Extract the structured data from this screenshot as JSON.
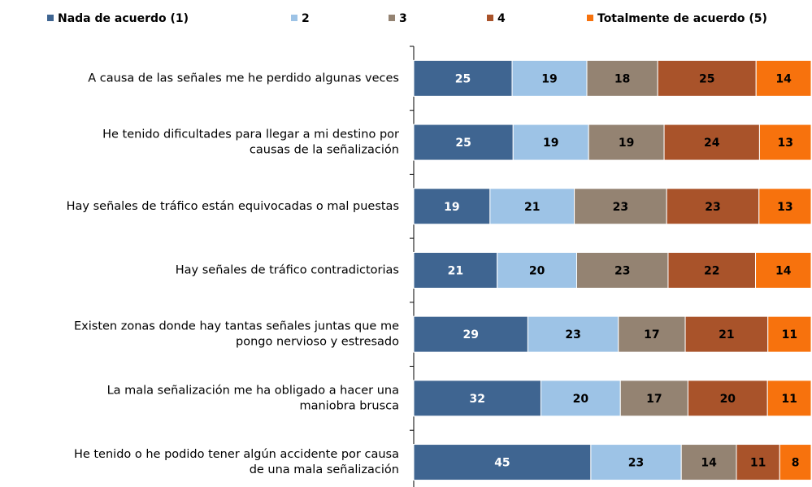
{
  "chart_data": {
    "type": "bar",
    "orientation": "horizontal",
    "stacked": "percent",
    "categories": [
      [
        "A causa de las señales me he perdido algunas veces"
      ],
      [
        "He tenido dificultades para llegar a mi destino por",
        "causas de la señalización"
      ],
      [
        "Hay señales de tráfico están equivocadas o mal puestas"
      ],
      [
        "Hay señales de tráfico contradictorias"
      ],
      [
        "Existen zonas donde hay tantas señales juntas que me",
        "pongo nervioso y estresado"
      ],
      [
        "La mala señalización me ha obligado a hacer una",
        "maniobra brusca"
      ],
      [
        "He tenido o he podido tener algún accidente por causa",
        "de una mala señalización"
      ]
    ],
    "series": [
      {
        "name": "Nada de acuerdo (1)",
        "color": "#3f6591",
        "label_color": "#ffffff",
        "values": [
          25,
          25,
          19,
          21,
          29,
          32,
          45
        ]
      },
      {
        "name": "2",
        "color": "#9dc3e6",
        "label_color": "#000000",
        "values": [
          19,
          19,
          21,
          20,
          23,
          20,
          23
        ]
      },
      {
        "name": "3",
        "color": "#948372",
        "label_color": "#000000",
        "values": [
          18,
          19,
          23,
          23,
          17,
          17,
          14
        ]
      },
      {
        "name": "4",
        "color": "#a9532a",
        "label_color": "#000000",
        "values": [
          25,
          24,
          23,
          22,
          21,
          20,
          11
        ]
      },
      {
        "name": "Totalmente de acuerdo (5)",
        "color": "#f7720d",
        "label_color": "#000000",
        "values": [
          14,
          13,
          13,
          14,
          11,
          11,
          8
        ]
      }
    ],
    "legend": "top"
  }
}
